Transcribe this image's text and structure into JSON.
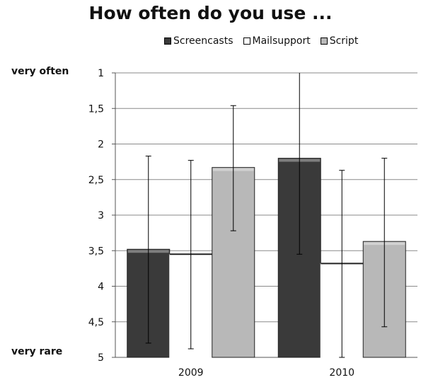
{
  "chart_data": {
    "type": "bar",
    "title": "How often do you use ...",
    "categories": [
      "2009",
      "2010"
    ],
    "series": [
      {
        "name": "Screencasts",
        "values": [
          3.48,
          2.2
        ],
        "error_low": [
          4.8,
          3.55
        ],
        "error_high": [
          2.17,
          0.9
        ],
        "color": "#3a3a3a"
      },
      {
        "name": "Mailsupport",
        "values": [
          3.55,
          3.68
        ],
        "error_low": [
          4.88,
          5.0
        ],
        "error_high": [
          2.23,
          2.37
        ],
        "color": "#ffffff"
      },
      {
        "name": "Script",
        "values": [
          2.33,
          3.37
        ],
        "error_low": [
          3.22,
          4.57
        ],
        "error_high": [
          1.46,
          2.2
        ],
        "color": "#b8b8b8"
      }
    ],
    "yticks": [
      "1",
      "1,5",
      "2",
      "2,5",
      "3",
      "3,5",
      "4",
      "4,5",
      "5"
    ],
    "ylim": [
      1,
      5
    ],
    "y_inverted": true,
    "grid": true,
    "legend": "top",
    "ylabel_top": "very often",
    "ylabel_bottom": "very rare"
  }
}
